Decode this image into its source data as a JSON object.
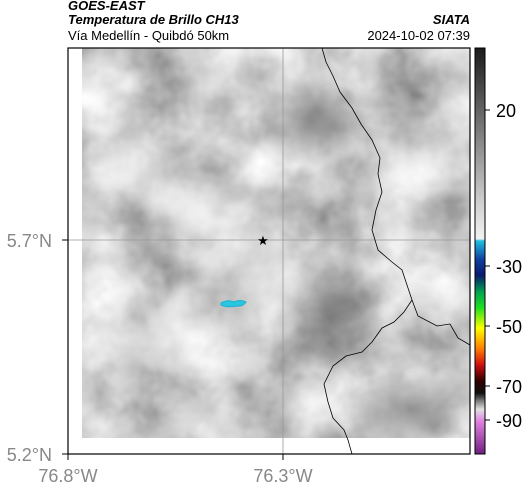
{
  "header": {
    "satellite": "GOES-EAST",
    "product": "Temperatura de Brillo CH13",
    "region": "Vía Medellín - Quibdó 50km",
    "agency": "SIATA",
    "timestamp": "2024-10-02 07:39"
  },
  "axes": {
    "lat_ticks": [
      "5.7°N",
      "5.2°N"
    ],
    "lon_ticks": [
      "76.8°W",
      "76.3°W"
    ]
  },
  "colorbar": {
    "ticks": [
      "20",
      "-30",
      "-50",
      "-70",
      "-90"
    ]
  },
  "colors": {
    "frame": "#000000",
    "gridline": "#999999",
    "coldest_cloud": "#29c6e0",
    "marker": "#000000"
  },
  "marker": {
    "symbol": "★"
  }
}
